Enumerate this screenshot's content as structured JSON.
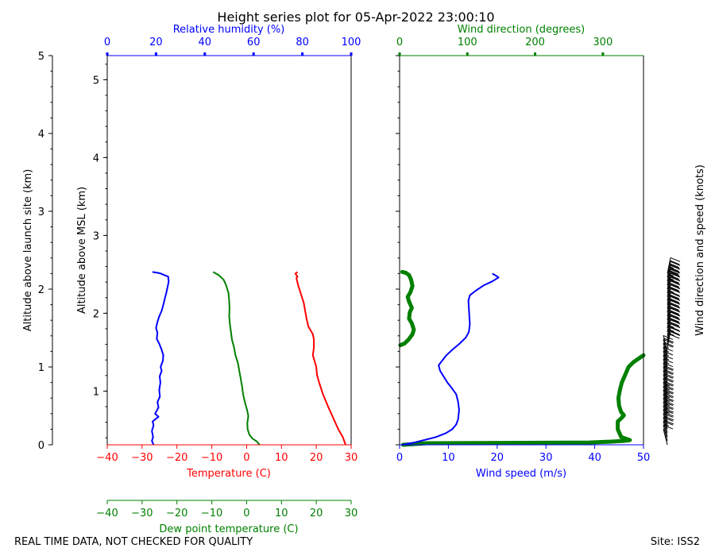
{
  "title": "Height series plot for 05-Apr-2022 23:00:10",
  "footer": {
    "left": "REAL TIME DATA, NOT CHECKED FOR QUALITY",
    "right": "Site: ISS2"
  },
  "colors": {
    "temperature": "#ff0000",
    "dewpoint": "#008000",
    "rh": "#0000ff",
    "wind_speed": "#0000ff",
    "wind_dir": "#008000",
    "axis": "#000000"
  },
  "chart_data": [
    {
      "type": "line",
      "name": "thermo-panel",
      "ylabel_left": "Altitude above launch site (km)",
      "ylabel_inner": "Altitude above MSL (km)",
      "agl_range": [
        0,
        5
      ],
      "agl_ticks": [
        "0",
        "1",
        "2",
        "3",
        "4",
        "5"
      ],
      "msl_offset_km": 0.31,
      "msl_ticks": [
        "1",
        "2",
        "3",
        "4",
        "5"
      ],
      "msl_tick_values": [
        1,
        2,
        3,
        4,
        5
      ],
      "x_bottom": {
        "label": "Temperature (C)",
        "range": [
          -40,
          30
        ],
        "ticks": [
          "−40",
          "−30",
          "−20",
          "−10",
          "0",
          "10",
          "20",
          "30"
        ],
        "tick_values": [
          -40,
          -30,
          -20,
          -10,
          0,
          10,
          20,
          30
        ]
      },
      "x_bottom2": {
        "label": "Dew point temperature (C)",
        "range": [
          -40,
          30
        ],
        "ticks": [
          "−40",
          "−30",
          "−20",
          "−10",
          "0",
          "10",
          "20",
          "30"
        ],
        "tick_values": [
          -40,
          -30,
          -20,
          -10,
          0,
          10,
          20,
          30
        ]
      },
      "x_top": {
        "label": "Relative humidity (%)",
        "range": [
          0,
          100
        ],
        "ticks": [
          "0",
          "20",
          "40",
          "60",
          "80",
          "100"
        ],
        "tick_values": [
          0,
          20,
          40,
          60,
          80,
          100
        ]
      },
      "series": [
        {
          "name": "Temperature",
          "axis": "temp",
          "color": "#ff0000",
          "points": [
            [
              28.4,
              0
            ],
            [
              27.6,
              0.1
            ],
            [
              26.3,
              0.2
            ],
            [
              24.8,
              0.35
            ],
            [
              23.3,
              0.5
            ],
            [
              21.9,
              0.65
            ],
            [
              20.8,
              0.8
            ],
            [
              20.2,
              0.9
            ],
            [
              20.0,
              1.0
            ],
            [
              19.5,
              1.08
            ],
            [
              19.0,
              1.15
            ],
            [
              19.3,
              1.25
            ],
            [
              19.3,
              1.35
            ],
            [
              19.0,
              1.42
            ],
            [
              17.7,
              1.52
            ],
            [
              17.3,
              1.6
            ],
            [
              16.8,
              1.72
            ],
            [
              16.4,
              1.82
            ],
            [
              15.5,
              1.95
            ],
            [
              14.8,
              2.05
            ],
            [
              14.3,
              2.14
            ],
            [
              14.6,
              2.16
            ],
            [
              14.0,
              2.2
            ],
            [
              14.6,
              2.22
            ]
          ]
        },
        {
          "name": "Dew point",
          "axis": "dew",
          "color": "#008000",
          "points": [
            [
              3.7,
              0
            ],
            [
              3.0,
              0.04
            ],
            [
              1.7,
              0.08
            ],
            [
              0.8,
              0.13
            ],
            [
              0.3,
              0.2
            ],
            [
              0.2,
              0.28
            ],
            [
              0.5,
              0.37
            ],
            [
              0.1,
              0.45
            ],
            [
              -0.5,
              0.55
            ],
            [
              -1.0,
              0.65
            ],
            [
              -1.3,
              0.75
            ],
            [
              -1.7,
              0.85
            ],
            [
              -2.1,
              0.95
            ],
            [
              -2.5,
              1.05
            ],
            [
              -3.2,
              1.15
            ],
            [
              -3.6,
              1.25
            ],
            [
              -4.2,
              1.35
            ],
            [
              -4.5,
              1.45
            ],
            [
              -4.8,
              1.55
            ],
            [
              -5.0,
              1.65
            ],
            [
              -4.9,
              1.75
            ],
            [
              -5.0,
              1.85
            ],
            [
              -5.2,
              1.95
            ],
            [
              -5.9,
              2.05
            ],
            [
              -6.6,
              2.12
            ],
            [
              -8.0,
              2.18
            ],
            [
              -9.6,
              2.22
            ]
          ]
        },
        {
          "name": "Relative humidity",
          "axis": "rh",
          "color": "#0000ff",
          "points": [
            [
              19.0,
              0
            ],
            [
              18.3,
              0.05
            ],
            [
              18.8,
              0.1
            ],
            [
              18.3,
              0.18
            ],
            [
              19.0,
              0.25
            ],
            [
              18.6,
              0.3
            ],
            [
              21.0,
              0.36
            ],
            [
              19.6,
              0.4
            ],
            [
              21.0,
              0.48
            ],
            [
              20.6,
              0.55
            ],
            [
              21.6,
              0.62
            ],
            [
              21.3,
              0.7
            ],
            [
              21.8,
              0.8
            ],
            [
              21.5,
              0.88
            ],
            [
              22.3,
              0.95
            ],
            [
              21.9,
              1.0
            ],
            [
              22.8,
              1.08
            ],
            [
              23.0,
              1.15
            ],
            [
              22.3,
              1.22
            ],
            [
              21.3,
              1.3
            ],
            [
              20.3,
              1.36
            ],
            [
              20.6,
              1.44
            ],
            [
              20.0,
              1.5
            ],
            [
              20.6,
              1.58
            ],
            [
              21.3,
              1.65
            ],
            [
              22.3,
              1.72
            ],
            [
              23.0,
              1.8
            ],
            [
              23.6,
              1.88
            ],
            [
              24.2,
              1.95
            ],
            [
              24.7,
              2.02
            ],
            [
              25.2,
              2.1
            ],
            [
              25.0,
              2.14
            ],
            [
              25.0,
              2.16
            ],
            [
              23.5,
              2.18
            ],
            [
              22.0,
              2.2
            ],
            [
              20.5,
              2.21
            ],
            [
              18.5,
              2.22
            ]
          ]
        }
      ]
    },
    {
      "type": "line",
      "name": "wind-panel",
      "x_bottom": {
        "label": "Wind speed (m/s)",
        "range": [
          0,
          50
        ],
        "ticks": [
          "0",
          "10",
          "20",
          "30",
          "40",
          "50"
        ],
        "tick_values": [
          0,
          10,
          20,
          30,
          40,
          50
        ]
      },
      "x_top": {
        "label": "Wind direction (degrees)",
        "range": [
          0,
          360
        ],
        "ticks": [
          "0",
          "100",
          "200",
          "300"
        ],
        "tick_values": [
          0,
          100,
          200,
          300
        ]
      },
      "right_label": "Wind direction and speed (knots)",
      "series": [
        {
          "name": "Wind speed",
          "axis": "speed",
          "color": "#0000ff",
          "points": [
            [
              0.5,
              0
            ],
            [
              3.0,
              0.03
            ],
            [
              5.0,
              0.06
            ],
            [
              7.5,
              0.1
            ],
            [
              9.5,
              0.15
            ],
            [
              10.8,
              0.2
            ],
            [
              11.6,
              0.26
            ],
            [
              12.0,
              0.33
            ],
            [
              12.2,
              0.45
            ],
            [
              12.0,
              0.55
            ],
            [
              11.6,
              0.65
            ],
            [
              10.8,
              0.72
            ],
            [
              9.8,
              0.8
            ],
            [
              9.0,
              0.88
            ],
            [
              8.3,
              0.95
            ],
            [
              8.0,
              1.02
            ],
            [
              8.7,
              1.08
            ],
            [
              9.6,
              1.15
            ],
            [
              10.8,
              1.22
            ],
            [
              12.3,
              1.3
            ],
            [
              13.6,
              1.38
            ],
            [
              14.2,
              1.45
            ],
            [
              14.4,
              1.55
            ],
            [
              14.3,
              1.65
            ],
            [
              14.2,
              1.75
            ],
            [
              14.1,
              1.85
            ],
            [
              14.4,
              1.92
            ],
            [
              15.6,
              1.98
            ],
            [
              17.3,
              2.05
            ],
            [
              19.0,
              2.1
            ],
            [
              20.3,
              2.15
            ],
            [
              19.8,
              2.17
            ],
            [
              19.0,
              2.2
            ]
          ]
        },
        {
          "name": "Wind direction",
          "axis": "dir",
          "color": "#008000",
          "width": 4,
          "points": [
            [
              5,
              0
            ],
            [
              40,
              0.02
            ],
            [
              280,
              0.03
            ],
            [
              310,
              0.04
            ],
            [
              330,
              0.05
            ],
            [
              340,
              0.06
            ],
            [
              327,
              0.1
            ],
            [
              322,
              0.2
            ],
            [
              322,
              0.3
            ],
            [
              327,
              0.34
            ],
            [
              331,
              0.38
            ],
            [
              327,
              0.42
            ],
            [
              324,
              0.5
            ],
            [
              323,
              0.6
            ],
            [
              325,
              0.7
            ],
            [
              328,
              0.8
            ],
            [
              333,
              0.9
            ],
            [
              338,
              1.0
            ],
            [
              345,
              1.06
            ],
            [
              355,
              1.12
            ],
            [
              360,
              1.15
            ]
          ]
        },
        {
          "name": "Wind direction (upper)",
          "axis": "dir",
          "color": "#008000",
          "width": 4,
          "points": [
            [
              1,
              1.28
            ],
            [
              7,
              1.3
            ],
            [
              13,
              1.35
            ],
            [
              19,
              1.42
            ],
            [
              21,
              1.48
            ],
            [
              18,
              1.56
            ],
            [
              14,
              1.62
            ],
            [
              15,
              1.7
            ],
            [
              18,
              1.76
            ],
            [
              14,
              1.84
            ],
            [
              12,
              1.9
            ],
            [
              16,
              1.96
            ],
            [
              19,
              2.04
            ],
            [
              17,
              2.12
            ],
            [
              14,
              2.18
            ],
            [
              9,
              2.21
            ],
            [
              4,
              2.22
            ]
          ]
        }
      ]
    }
  ]
}
